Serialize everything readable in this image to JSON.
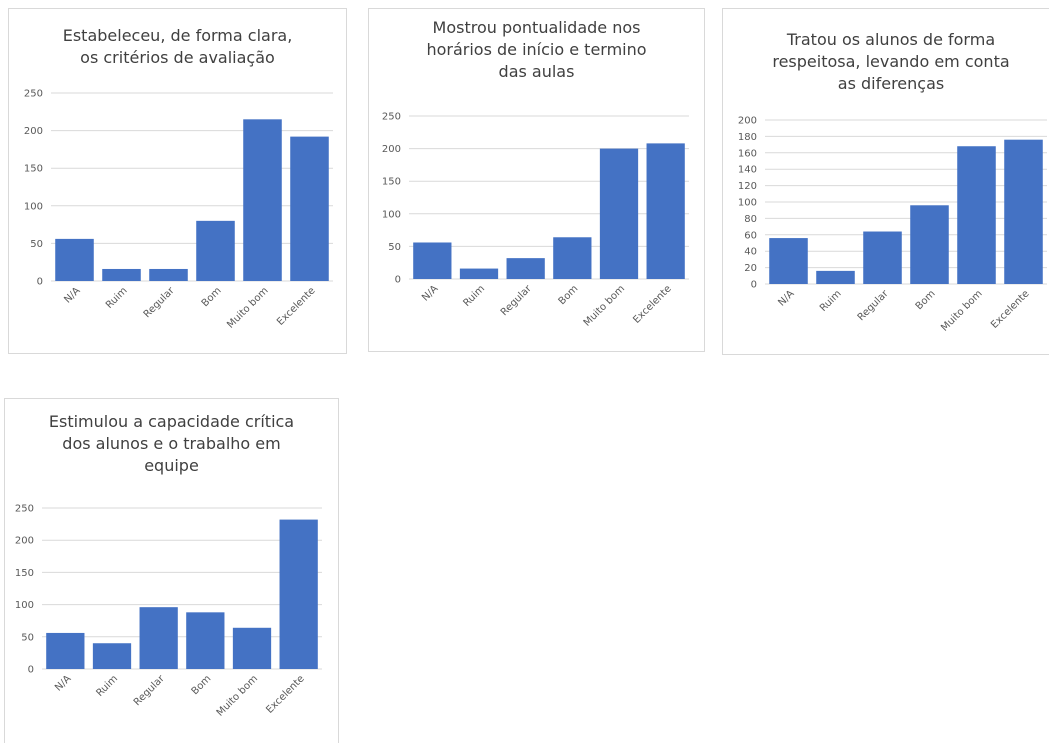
{
  "chart_data": [
    {
      "type": "bar",
      "title": "Estabeleceu, de forma clara,\nos critérios de avaliação",
      "categories": [
        "N/A",
        "Ruim",
        "Regular",
        "Bom",
        "Muito bom",
        "Excelente"
      ],
      "values": [
        56,
        16,
        16,
        80,
        215,
        192
      ],
      "yticks": [
        "0",
        "50",
        "100",
        "150",
        "200",
        "250"
      ],
      "ylim": [
        0,
        250
      ],
      "grid": true,
      "color": "#4472c4"
    },
    {
      "type": "bar",
      "title": "Mostrou pontualidade nos\nhorários de início e termino\ndas aulas",
      "categories": [
        "N/A",
        "Ruim",
        "Regular",
        "Bom",
        "Muito bom",
        "Excelente"
      ],
      "values": [
        56,
        16,
        32,
        64,
        200,
        208
      ],
      "yticks": [
        "0",
        "50",
        "100",
        "150",
        "200",
        "250"
      ],
      "ylim": [
        0,
        250
      ],
      "grid": true,
      "color": "#4472c4"
    },
    {
      "type": "bar",
      "title": "Tratou os alunos de forma\nrespeitosa, levando em conta\nas diferenças",
      "categories": [
        "N/A",
        "Ruim",
        "Regular",
        "Bom",
        "Muito bom",
        "Excelente"
      ],
      "values": [
        56,
        16,
        64,
        96,
        168,
        176
      ],
      "yticks": [
        "0",
        "20",
        "40",
        "60",
        "80",
        "100",
        "120",
        "140",
        "160",
        "180",
        "200"
      ],
      "ylim": [
        0,
        200
      ],
      "grid": true,
      "color": "#4472c4"
    },
    {
      "type": "bar",
      "title": "Estimulou a capacidade crítica\ndos alunos e o trabalho em\nequipe",
      "categories": [
        "N/A",
        "Ruim",
        "Regular",
        "Bom",
        "Muito bom",
        "Excelente"
      ],
      "values": [
        56,
        40,
        96,
        88,
        64,
        232
      ],
      "yticks": [
        "0",
        "50",
        "100",
        "150",
        "200",
        "250"
      ],
      "ylim": [
        0,
        250
      ],
      "grid": true,
      "color": "#4472c4"
    }
  ]
}
